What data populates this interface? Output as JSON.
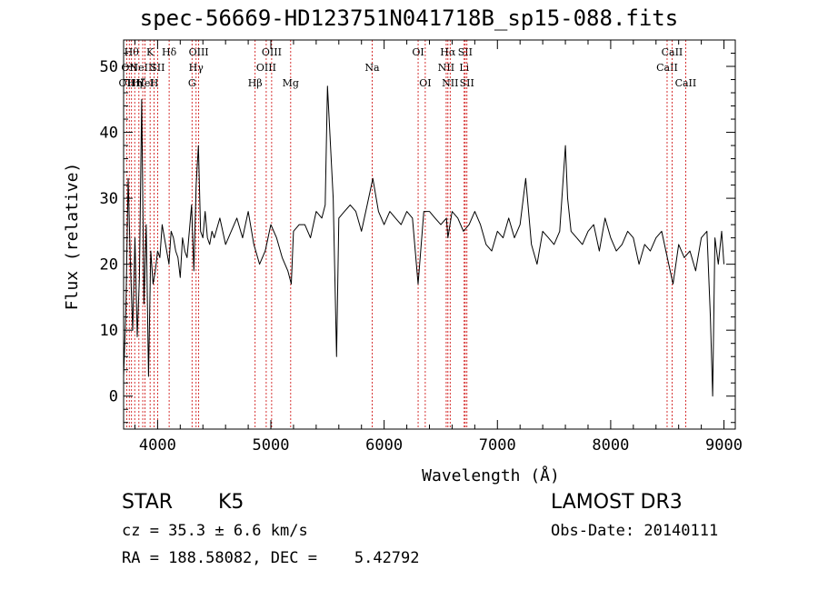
{
  "chart_data": {
    "type": "line",
    "title": "spec-56669-HD123751N041718B_sp15-088.fits",
    "xlabel": "Wavelength (Å)",
    "ylabel": "Flux (relative)",
    "xlim": [
      3700,
      9100
    ],
    "ylim": [
      -5,
      54
    ],
    "xticks": [
      4000,
      5000,
      6000,
      7000,
      8000,
      9000
    ],
    "yticks": [
      0,
      10,
      20,
      30,
      40,
      50
    ],
    "line_color": "#000000",
    "marker_color": "#cc0000",
    "series": [
      {
        "x": [
          3700,
          3720,
          3740,
          3760,
          3780,
          3800,
          3820,
          3840,
          3860,
          3880,
          3900,
          3920,
          3940,
          3960,
          3980,
          4000,
          4020,
          4040,
          4060,
          4080,
          4100,
          4120,
          4140,
          4160,
          4180,
          4200,
          4220,
          4240,
          4260,
          4280,
          4300,
          4320,
          4340,
          4360,
          4380,
          4400,
          4420,
          4440,
          4460,
          4480,
          4500,
          4550,
          4600,
          4650,
          4700,
          4750,
          4800,
          4850,
          4900,
          4950,
          5000,
          5050,
          5100,
          5150,
          5180,
          5200,
          5250,
          5300,
          5350,
          5400,
          5450,
          5480,
          5500,
          5550,
          5580,
          5600,
          5650,
          5700,
          5750,
          5800,
          5850,
          5900,
          5950,
          6000,
          6050,
          6100,
          6150,
          6200,
          6250,
          6300,
          6350,
          6400,
          6450,
          6500,
          6550,
          6563,
          6600,
          6650,
          6700,
          6750,
          6800,
          6850,
          6900,
          6950,
          7000,
          7050,
          7100,
          7150,
          7200,
          7250,
          7300,
          7350,
          7400,
          7450,
          7500,
          7550,
          7600,
          7620,
          7650,
          7700,
          7750,
          7800,
          7850,
          7900,
          7950,
          8000,
          8050,
          8100,
          8150,
          8200,
          8250,
          8300,
          8350,
          8400,
          8450,
          8500,
          8550,
          8600,
          8650,
          8700,
          8750,
          8800,
          8850,
          8880,
          8900,
          8920,
          8950,
          8980,
          9000
        ],
        "y": [
          3,
          13,
          33,
          20,
          10,
          24,
          9,
          18,
          45,
          14,
          26,
          3,
          22,
          17,
          19,
          22,
          21,
          26,
          24,
          22,
          20,
          25,
          24,
          22,
          21,
          18,
          24,
          22,
          21,
          25,
          29,
          19,
          32,
          38,
          25,
          24,
          28,
          24,
          23,
          25,
          24,
          27,
          23,
          25,
          27,
          24,
          28,
          23,
          20,
          22,
          26,
          24,
          21,
          19,
          17,
          25,
          26,
          26,
          24,
          28,
          27,
          29,
          47,
          30,
          6,
          27,
          28,
          29,
          28,
          25,
          29,
          33,
          28,
          26,
          28,
          27,
          26,
          28,
          27,
          17,
          28,
          28,
          27,
          26,
          27,
          24,
          28,
          27,
          25,
          26,
          28,
          26,
          23,
          22,
          25,
          24,
          27,
          24,
          26,
          33,
          23,
          20,
          25,
          24,
          23,
          25,
          38,
          30,
          25,
          24,
          23,
          25,
          26,
          22,
          27,
          24,
          22,
          23,
          25,
          24,
          20,
          23,
          22,
          24,
          25,
          21,
          17,
          23,
          21,
          22,
          19,
          24,
          25,
          12,
          0,
          24,
          20,
          25,
          20
        ]
      }
    ],
    "markers": [
      {
        "x": 3727,
        "row": 2,
        "label": "OII"
      },
      {
        "x": 3750,
        "row": 1,
        "label": "OII"
      },
      {
        "x": 3770,
        "row": 0,
        "label": "Hθ"
      },
      {
        "x": 3798,
        "row": 2,
        "label": "Hη"
      },
      {
        "x": 3835,
        "row": 2,
        "label": "Hζ"
      },
      {
        "x": 3869,
        "row": 1,
        "label": "NeIII"
      },
      {
        "x": 3889,
        "row": 2,
        "label": "HeI"
      },
      {
        "x": 3934,
        "row": 0,
        "label": "K"
      },
      {
        "x": 3969,
        "row": 2,
        "label": "H"
      },
      {
        "x": 4000,
        "row": 1,
        "label": "SII"
      },
      {
        "x": 4102,
        "row": 0,
        "label": "Hδ"
      },
      {
        "x": 4304,
        "row": 2,
        "label": "G"
      },
      {
        "x": 4340,
        "row": 1,
        "label": "Hγ"
      },
      {
        "x": 4363,
        "row": 0,
        "label": "OIII"
      },
      {
        "x": 4861,
        "row": 2,
        "label": "Hβ"
      },
      {
        "x": 4959,
        "row": 1,
        "label": "OIII"
      },
      {
        "x": 5007,
        "row": 0,
        "label": "OIII"
      },
      {
        "x": 5175,
        "row": 2,
        "label": "Mg"
      },
      {
        "x": 5894,
        "row": 1,
        "label": "Na"
      },
      {
        "x": 6300,
        "row": 0,
        "label": "OI"
      },
      {
        "x": 6363,
        "row": 2,
        "label": "OI"
      },
      {
        "x": 6548,
        "row": 1,
        "label": "NII"
      },
      {
        "x": 6563,
        "row": 0,
        "label": "Hα"
      },
      {
        "x": 6583,
        "row": 2,
        "label": "NII"
      },
      {
        "x": 6707,
        "row": 1,
        "label": "Li"
      },
      {
        "x": 6716,
        "row": 0,
        "label": "SII"
      },
      {
        "x": 6731,
        "row": 2,
        "label": "SII"
      },
      {
        "x": 8498,
        "row": 1,
        "label": "CaII"
      },
      {
        "x": 8542,
        "row": 0,
        "label": "CaII"
      },
      {
        "x": 8662,
        "row": 2,
        "label": "CaII"
      }
    ]
  },
  "info": {
    "class": "STAR",
    "subclass": "K5",
    "survey": "LAMOST DR3",
    "cz": "cz = 35.3 ± 6.6 km/s",
    "obs_date": "Obs-Date: 20140111",
    "radec": "RA = 188.58082, DEC =    5.42792"
  }
}
